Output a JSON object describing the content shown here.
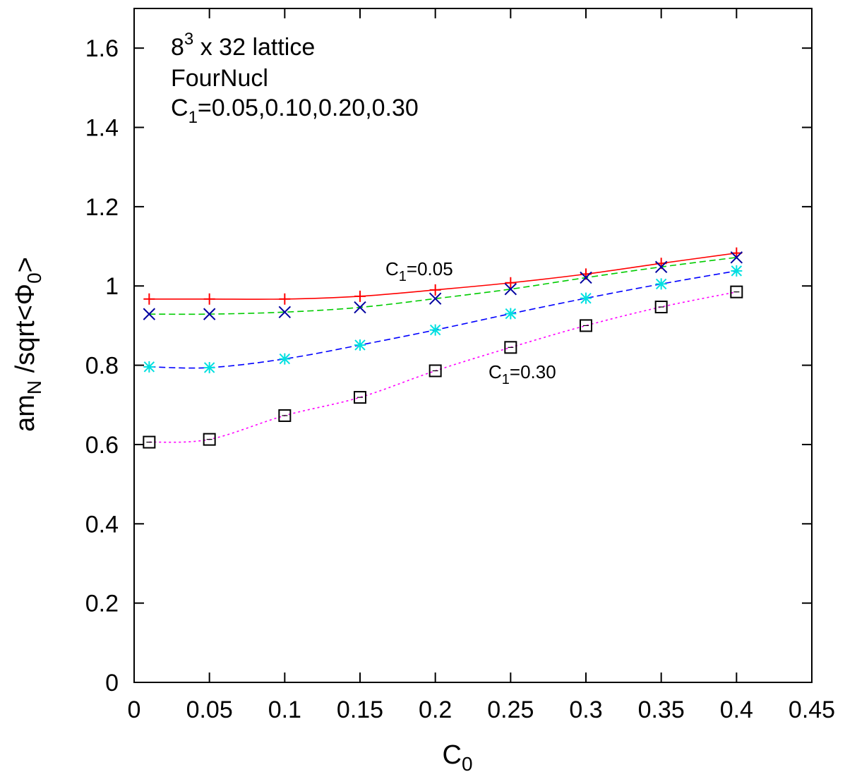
{
  "chart_data": {
    "type": "line",
    "title": "",
    "xlabel": {
      "base": "C",
      "sub": "0"
    },
    "ylabel": {
      "pre": "am",
      "sub1": "N",
      "mid": " /sqrt<Φ",
      "sub2": "0",
      "post": ">"
    },
    "xlim": [
      0,
      0.45
    ],
    "ylim": [
      0,
      1.7
    ],
    "xticks": [
      "0",
      "0.05",
      "0.1",
      "0.15",
      "0.2",
      "0.25",
      "0.3",
      "0.35",
      "0.4",
      "0.45"
    ],
    "yticks": [
      "0",
      "0.2",
      "0.4",
      "0.6",
      "0.8",
      "1",
      "1.2",
      "1.4",
      "1.6"
    ],
    "xtick_values": [
      0,
      0.05,
      0.1,
      0.15,
      0.2,
      0.25,
      0.3,
      0.35,
      0.4,
      0.45
    ],
    "ytick_values": [
      0,
      0.2,
      0.4,
      0.6,
      0.8,
      1.0,
      1.2,
      1.4,
      1.6
    ],
    "grid": false,
    "legend": "none",
    "x": [
      0.01,
      0.05,
      0.1,
      0.15,
      0.2,
      0.25,
      0.3,
      0.35,
      0.4
    ],
    "series": [
      {
        "marker": "plus",
        "line": "solid",
        "color": "#ff0000",
        "marker_color": "#ff0000",
        "values": [
          0.967,
          0.967,
          0.967,
          0.974,
          0.99,
          1.008,
          1.03,
          1.057,
          1.083
        ]
      },
      {
        "marker": "x",
        "line": "dashed",
        "color": "#00cc00",
        "marker_color": "#0000a0",
        "values": [
          0.929,
          0.929,
          0.934,
          0.946,
          0.968,
          0.992,
          1.021,
          1.048,
          1.072
        ]
      },
      {
        "marker": "star",
        "line": "dashed",
        "color": "#0000ff",
        "marker_color": "#00e0e0",
        "values": [
          0.796,
          0.794,
          0.816,
          0.851,
          0.889,
          0.93,
          0.969,
          1.005,
          1.038
        ]
      },
      {
        "marker": "square",
        "line": "dotted",
        "color": "#ff00ff",
        "marker_color": "#000000",
        "values": [
          0.606,
          0.613,
          0.673,
          0.719,
          0.786,
          0.845,
          0.9,
          0.947,
          0.985
        ]
      }
    ],
    "annotations": {
      "lattice": {
        "base": "8",
        "sup": "3",
        "rest": " x 32 lattice"
      },
      "action": "FourNucl",
      "c1_list": {
        "base": "C",
        "sub": "1",
        "rest": "=0.05,0.10,0.20,0.30"
      },
      "label_top": {
        "base": "C",
        "sub": "1",
        "rest": "=0.05"
      },
      "label_bottom": {
        "base": "C",
        "sub": "1",
        "rest": "=0.30"
      }
    }
  }
}
